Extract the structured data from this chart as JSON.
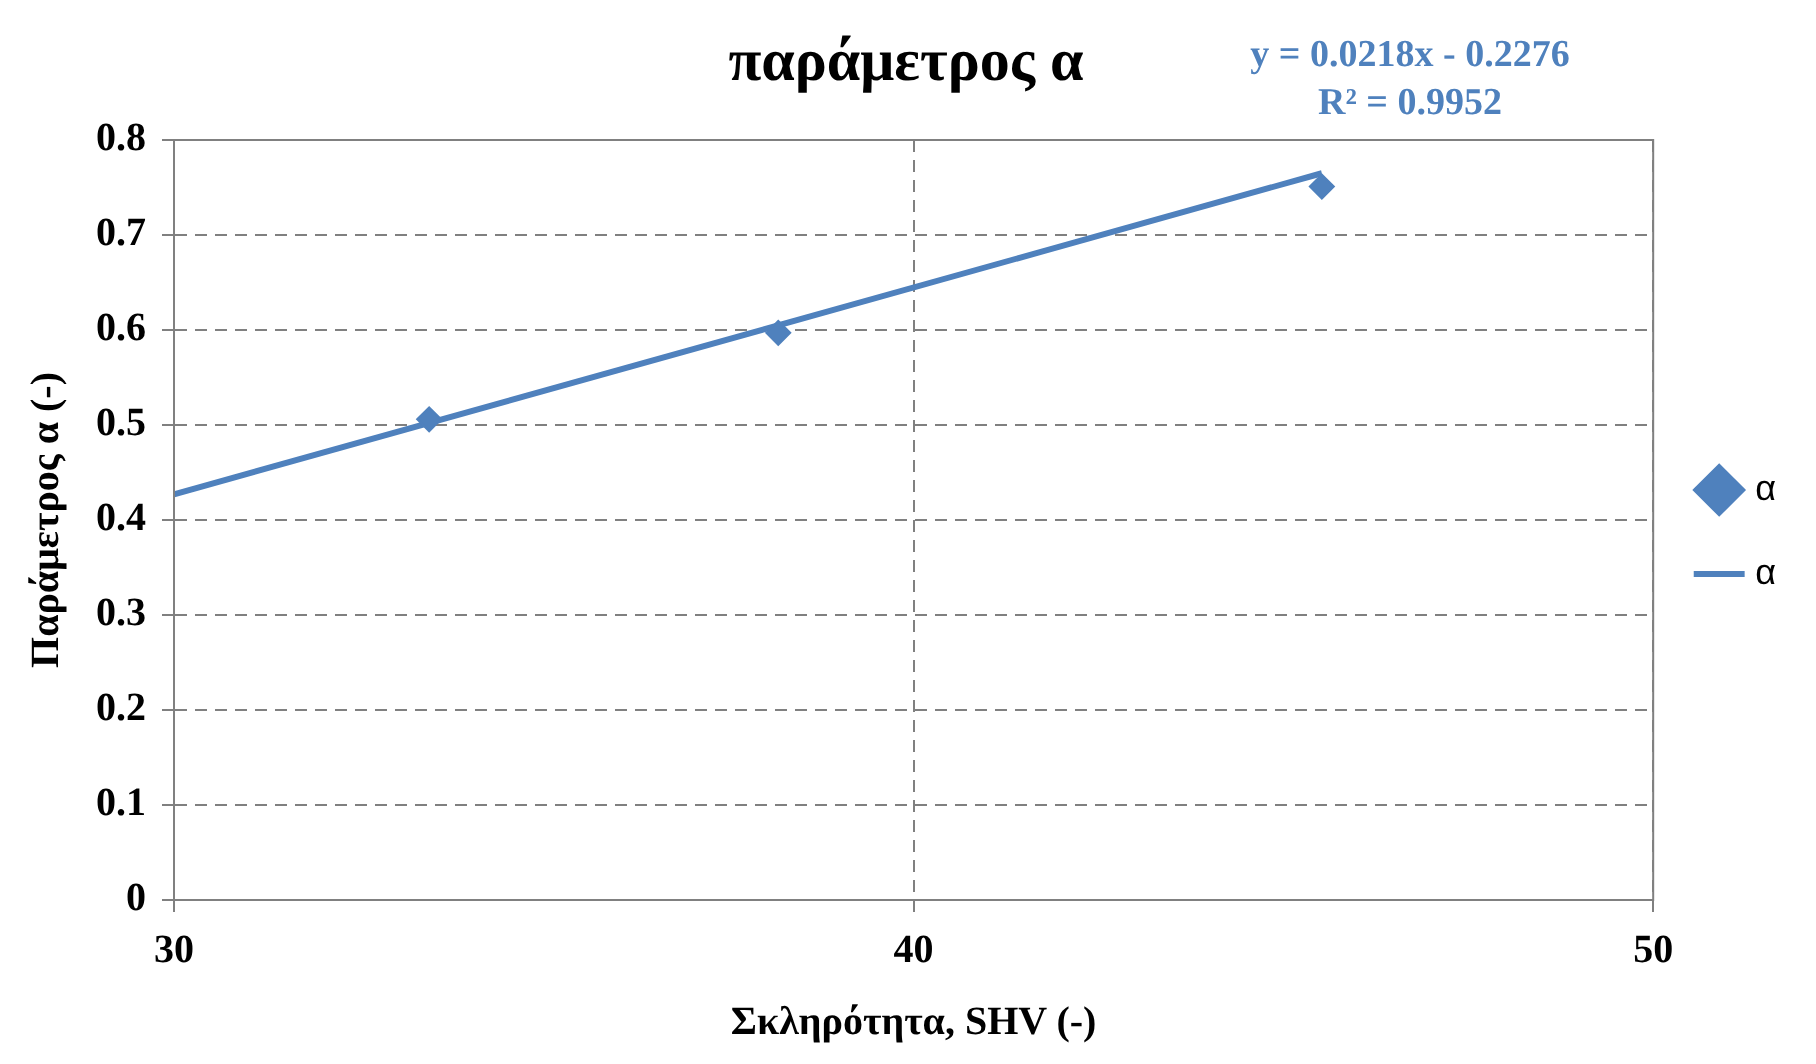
{
  "chart_data": {
    "type": "scatter",
    "title": "παράμετρος α",
    "xlabel": "Σκληρότητα, SHV (-)",
    "ylabel": "Παράμετρος α (-)",
    "annotations": [
      "y = 0.0218x - 0.2276",
      "R² = 0.9952"
    ],
    "xlim": [
      30,
      50
    ],
    "xticks": [
      30,
      40,
      50
    ],
    "ylim": [
      0,
      0.8
    ],
    "yticks": [
      0,
      0.1,
      0.2,
      0.3,
      0.4,
      0.5,
      0.6,
      0.7,
      0.8
    ],
    "grid": true,
    "legend": "right",
    "series": [
      {
        "name": "α",
        "type": "scatter",
        "color": "#4f81bd",
        "marker": "diamond",
        "x": [
          33.45,
          38.17,
          45.52
        ],
        "values": [
          0.506,
          0.597,
          0.751
        ]
      },
      {
        "name": "α",
        "type": "line",
        "color": "#4f81bd",
        "marker": "none",
        "line_style": "solid",
        "x": [
          30,
          45.52
        ],
        "values": [
          0.427,
          0.765
        ]
      }
    ]
  }
}
